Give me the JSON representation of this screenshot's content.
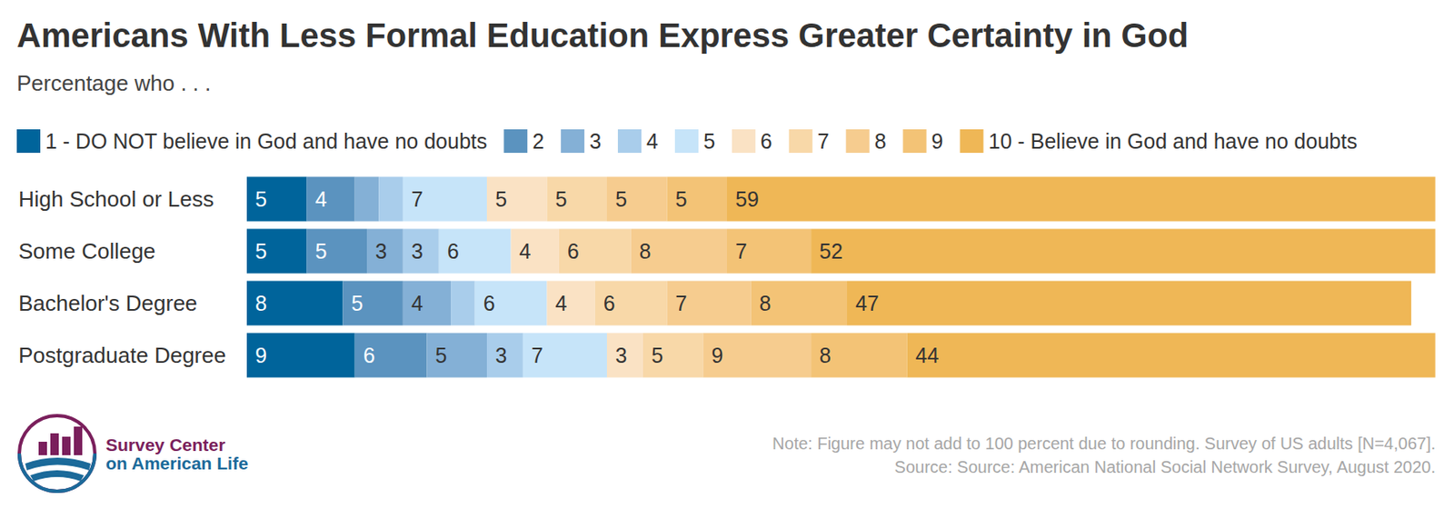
{
  "chart_data": {
    "type": "bar",
    "orientation": "horizontal",
    "stacked": true,
    "data_labels": true,
    "tick_labels": "y",
    "title": "Americans With Less Formal Education Express Greater Certainty in God",
    "subtitle": "Percentage who . . .",
    "categories": [
      "High School or Less",
      "Some College",
      "Bachelor's Degree",
      "Postgraduate Degree"
    ],
    "xlim": [
      0,
      100
    ],
    "series": [
      {
        "name": "1 - DO NOT believe in God and have no doubts",
        "color": "#00649b",
        "values": [
          5,
          5,
          8,
          9
        ]
      },
      {
        "name": "2",
        "color": "#5b93bf",
        "values": [
          4,
          5,
          5,
          6
        ]
      },
      {
        "name": "3",
        "color": "#84b0d6",
        "values": [
          2,
          3,
          4,
          5
        ]
      },
      {
        "name": "4",
        "color": "#a9cdeb",
        "values": [
          2,
          3,
          2,
          3
        ]
      },
      {
        "name": "5",
        "color": "#c6e4f9",
        "values": [
          7,
          6,
          6,
          7
        ]
      },
      {
        "name": "6",
        "color": "#fae2c4",
        "values": [
          5,
          4,
          4,
          3
        ]
      },
      {
        "name": "7",
        "color": "#f8d8a8",
        "values": [
          5,
          6,
          6,
          5
        ]
      },
      {
        "name": "8",
        "color": "#f6cc8f",
        "values": [
          5,
          8,
          7,
          9
        ]
      },
      {
        "name": "9",
        "color": "#f3c376",
        "values": [
          5,
          7,
          8,
          8
        ]
      },
      {
        "name": "10 - Believe in God and have no doubts",
        "color": "#efb756",
        "values": [
          59,
          52,
          47,
          44
        ]
      }
    ],
    "note": "Note: Figure may not add to 100 percent due to rounding. Survey of US adults [N=4,067].",
    "source": "Source: Source: American National Social Network Survey, August 2020.",
    "logo": [
      "Survey Center",
      "on American Life"
    ]
  }
}
